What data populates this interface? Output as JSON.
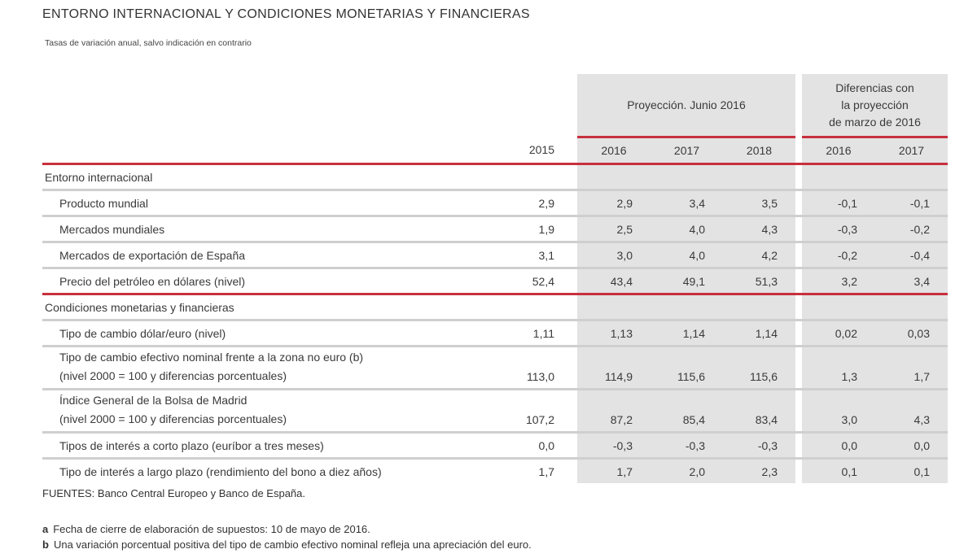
{
  "title": "ENTORNO INTERNACIONAL Y CONDICIONES MONETARIAS Y FINANCIERAS",
  "subtitle": "Tasas de variación anual, salvo indicación en contrario",
  "header": {
    "projection_group": "Proyección. Junio 2016",
    "differences_group": [
      "Diferencias con",
      "la proyección",
      "de marzo de 2016"
    ],
    "years": [
      "2015",
      "2016",
      "2017",
      "2018",
      "2016",
      "2017"
    ]
  },
  "sections": [
    {
      "label": "Entorno internacional",
      "rows": [
        {
          "label": [
            "Producto mundial"
          ],
          "values": [
            "2,9",
            "2,9",
            "3,4",
            "3,5",
            "-0,1",
            "-0,1"
          ]
        },
        {
          "label": [
            "Mercados mundiales"
          ],
          "values": [
            "1,9",
            "2,5",
            "4,0",
            "4,3",
            "-0,3",
            "-0,2"
          ]
        },
        {
          "label": [
            "Mercados de exportación de España"
          ],
          "values": [
            "3,1",
            "3,0",
            "4,0",
            "4,2",
            "-0,2",
            "-0,4"
          ]
        },
        {
          "label": [
            "Precio del petróleo en dólares (nivel)"
          ],
          "values": [
            "52,4",
            "43,4",
            "49,1",
            "51,3",
            "3,2",
            "3,4"
          ]
        }
      ]
    },
    {
      "label": "Condiciones monetarias y financieras",
      "rows": [
        {
          "label": [
            "Tipo de cambio dólar/euro  (nivel)"
          ],
          "values": [
            "1,11",
            "1,13",
            "1,14",
            "1,14",
            "0,02",
            "0,03"
          ]
        },
        {
          "label": [
            "Tipo de cambio efectivo nominal frente a la zona no euro (b)",
            "(nivel 2000 = 100 y diferencias porcentuales)"
          ],
          "values": [
            "113,0",
            "114,9",
            "115,6",
            "115,6",
            "1,3",
            "1,7"
          ]
        },
        {
          "label": [
            "Índice General de la Bolsa de Madrid",
            "(nivel 2000 = 100 y diferencias porcentuales)"
          ],
          "values": [
            "107,2",
            "87,2",
            "85,4",
            "83,4",
            "3,0",
            "4,3"
          ]
        },
        {
          "label": [
            "Tipos de interés a corto plazo (euríbor a tres meses)"
          ],
          "values": [
            "0,0",
            "-0,3",
            "-0,3",
            "-0,3",
            "0,0",
            "0,0"
          ]
        },
        {
          "label": [
            "Tipo de interés a largo plazo  (rendimiento del bono a diez años)"
          ],
          "values": [
            "1,7",
            "1,7",
            "2,0",
            "2,3",
            "0,1",
            "0,1"
          ]
        }
      ]
    }
  ],
  "sources": "FUENTES: Banco Central Europeo y Banco de España.",
  "notes": [
    {
      "mark": "a",
      "text": "Fecha de cierre de elaboración de supuestos: 10 de mayo de 2016."
    },
    {
      "mark": "b",
      "text": "Una variación porcentual positiva del tipo de cambio efectivo nominal refleja una apreciación del euro."
    }
  ],
  "colors": {
    "accent_red": "#c8303d",
    "shade_gray": "#e3e3e3",
    "rule_gray": "#cfcfcf"
  }
}
